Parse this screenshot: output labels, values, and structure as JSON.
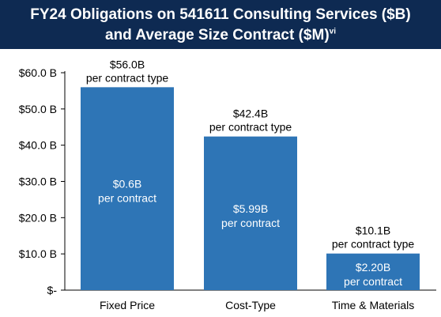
{
  "chart_data": {
    "type": "bar",
    "title_line1": "FY24 Obligations on 541611 Consulting Services ($B)",
    "title_line2": "and Average Size Contract ($M)",
    "title_superscript": "vi",
    "categories": [
      "Fixed Price",
      "Cost-Type",
      "Time & Materials"
    ],
    "values": [
      56.0,
      42.4,
      10.1
    ],
    "ylim": [
      0,
      60
    ],
    "yticks": [
      0,
      10,
      20,
      30,
      40,
      50,
      60
    ],
    "ytick_labels": [
      "$-",
      "$10.0 B",
      "$20.0 B",
      "$30.0 B",
      "$40.0 B",
      "$50.0 B",
      "$60.0 B"
    ],
    "top_labels": [
      {
        "value": "$56.0B",
        "sub": "per contract type"
      },
      {
        "value": "$42.4B",
        "sub": "per contract type"
      },
      {
        "value": "$10.1B",
        "sub": "per contract type"
      }
    ],
    "inner_labels": [
      {
        "value": "$0.6B",
        "sub": "per contract"
      },
      {
        "value": "$5.99B",
        "sub": "per contract"
      },
      {
        "value": "$2.20B",
        "sub": "per contract"
      }
    ],
    "bar_color": "#2e75b6",
    "axis_color": "#000000",
    "grid": false
  }
}
